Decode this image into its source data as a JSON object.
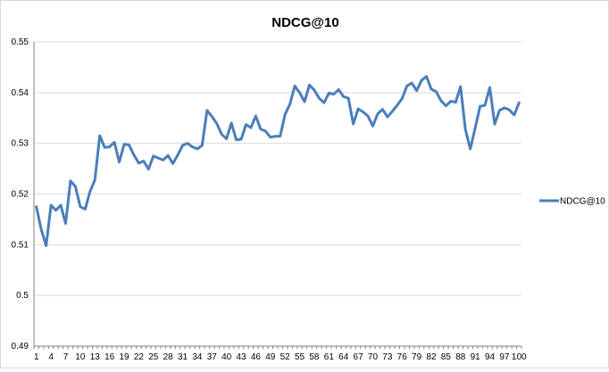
{
  "chart_data": {
    "type": "line",
    "title": "NDCG@10",
    "xlabel": "",
    "ylabel": "",
    "ylim": [
      0.49,
      0.55
    ],
    "y_ticks": [
      "0.49",
      "0.5",
      "0.51",
      "0.52",
      "0.53",
      "0.54",
      "0.55"
    ],
    "x_tick_labels": [
      "1",
      "4",
      "7",
      "10",
      "13",
      "16",
      "19",
      "22",
      "25",
      "28",
      "31",
      "34",
      "37",
      "40",
      "43",
      "46",
      "49",
      "52",
      "55",
      "58",
      "61",
      "64",
      "67",
      "70",
      "73",
      "76",
      "79",
      "82",
      "85",
      "88",
      "91",
      "94",
      "97",
      "100"
    ],
    "grid": true,
    "legend_position": "right",
    "x": [
      1,
      2,
      3,
      4,
      5,
      6,
      7,
      8,
      9,
      10,
      11,
      12,
      13,
      14,
      15,
      16,
      17,
      18,
      19,
      20,
      21,
      22,
      23,
      24,
      25,
      26,
      27,
      28,
      29,
      30,
      31,
      32,
      33,
      34,
      35,
      36,
      37,
      38,
      39,
      40,
      41,
      42,
      43,
      44,
      45,
      46,
      47,
      48,
      49,
      50,
      51,
      52,
      53,
      54,
      55,
      56,
      57,
      58,
      59,
      60,
      61,
      62,
      63,
      64,
      65,
      66,
      67,
      68,
      69,
      70,
      71,
      72,
      73,
      74,
      75,
      76,
      77,
      78,
      79,
      80,
      81,
      82,
      83,
      84,
      85,
      86,
      87,
      88,
      89,
      90,
      91,
      92,
      93,
      94,
      95,
      96,
      97,
      98,
      99,
      100
    ],
    "series": [
      {
        "name": "NDCG@10",
        "color": "#4a7ebb",
        "values": [
          0.5175,
          0.513,
          0.5098,
          0.5178,
          0.5168,
          0.5178,
          0.5142,
          0.5226,
          0.5215,
          0.5175,
          0.517,
          0.5205,
          0.5228,
          0.5315,
          0.5292,
          0.5293,
          0.5302,
          0.5263,
          0.5298,
          0.5297,
          0.5277,
          0.5261,
          0.5265,
          0.5249,
          0.5275,
          0.5271,
          0.5267,
          0.5276,
          0.526,
          0.5277,
          0.5296,
          0.53,
          0.5293,
          0.5289,
          0.5296,
          0.5365,
          0.5353,
          0.5339,
          0.5318,
          0.5309,
          0.534,
          0.5307,
          0.5308,
          0.5337,
          0.5331,
          0.5354,
          0.5328,
          0.5324,
          0.5312,
          0.5314,
          0.5314,
          0.5357,
          0.5377,
          0.5413,
          0.54,
          0.5382,
          0.5415,
          0.5405,
          0.5389,
          0.538,
          0.5399,
          0.5397,
          0.5406,
          0.5392,
          0.5389,
          0.5338,
          0.5368,
          0.5362,
          0.5354,
          0.5334,
          0.5358,
          0.5367,
          0.5352,
          0.5363,
          0.5375,
          0.5388,
          0.5413,
          0.5419,
          0.5404,
          0.5424,
          0.5432,
          0.5407,
          0.5402,
          0.5384,
          0.5374,
          0.5383,
          0.5381,
          0.5412,
          0.5327,
          0.5289,
          0.533,
          0.5373,
          0.5375,
          0.541,
          0.5338,
          0.5365,
          0.537,
          0.5366,
          0.5356,
          0.538
        ]
      }
    ]
  }
}
